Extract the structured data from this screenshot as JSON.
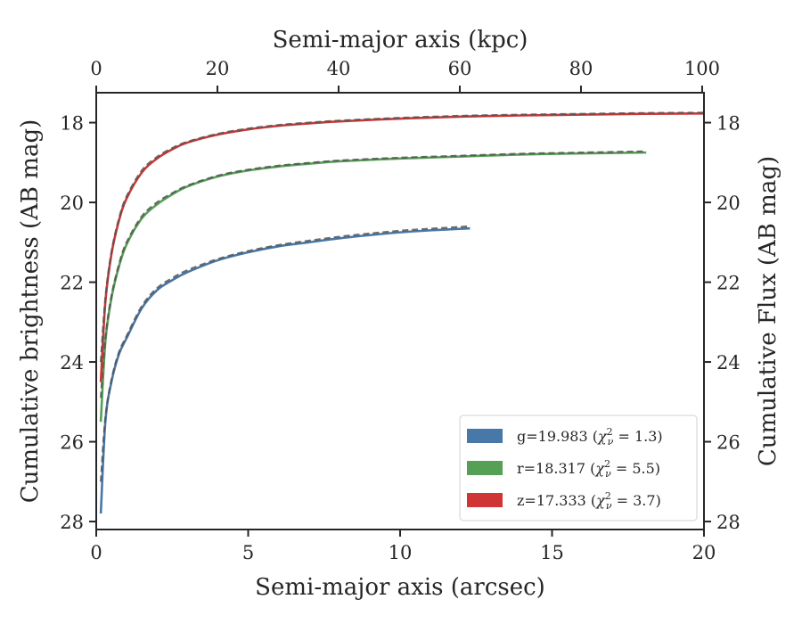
{
  "chart_data": {
    "type": "line",
    "xlabel": "Semi-major axis (arcsec)",
    "ylabel": "Cumulative brightness (AB mag)",
    "top_xlabel": "Semi-major axis (kpc)",
    "right_ylabel": "Cumulative Flux (AB mag)",
    "xlim": [
      0,
      20
    ],
    "ylim": [
      28.2,
      17.25
    ],
    "y_inverted": true,
    "top_xlim": [
      0,
      100.3
    ],
    "x_ticks": [
      "0",
      "5",
      "10",
      "15",
      "20"
    ],
    "x_tick_values": [
      0,
      5,
      10,
      15,
      20
    ],
    "top_x_ticks": [
      "0",
      "20",
      "40",
      "60",
      "80",
      "100"
    ],
    "top_x_tick_values": [
      0,
      20,
      40,
      60,
      80,
      100
    ],
    "y_ticks": [
      "18",
      "20",
      "22",
      "24",
      "26",
      "28"
    ],
    "y_tick_values": [
      18,
      20,
      22,
      24,
      26,
      28
    ],
    "grid": false,
    "legend_position": "bottom-right",
    "colors": {
      "g": "#4878a8",
      "r": "#55a055",
      "z": "#d03535",
      "model": "#555555"
    },
    "series": [
      {
        "name": "g=19.983 ($\\chi^2_\\nu = 1.3$)",
        "label_text": "g=19.983 (",
        "chi_value": "1.3",
        "color": "#4878a8",
        "x": [
          0.15,
          0.3,
          0.5,
          0.75,
          1.0,
          1.5,
          2.0,
          2.5,
          3.0,
          4.0,
          5.0,
          6.0,
          7.0,
          8.0,
          9.0,
          10.0,
          11.0,
          12.3
        ],
        "y": [
          27.8,
          25.5,
          24.5,
          23.8,
          23.4,
          22.65,
          22.2,
          21.95,
          21.75,
          21.45,
          21.25,
          21.1,
          21.0,
          20.9,
          20.82,
          20.75,
          20.7,
          20.65
        ],
        "model_y": [
          27.0,
          25.4,
          24.45,
          23.75,
          23.35,
          22.6,
          22.15,
          21.9,
          21.7,
          21.42,
          21.22,
          21.07,
          20.96,
          20.86,
          20.78,
          20.71,
          20.66,
          20.6
        ]
      },
      {
        "name": "r=18.317 ($\\chi^2_\\nu = 5.5$)",
        "label_text": "r=18.317 (",
        "chi_value": "5.5",
        "color": "#55a055",
        "x": [
          0.15,
          0.3,
          0.5,
          0.75,
          1.0,
          1.5,
          2.0,
          2.5,
          3.0,
          4.0,
          5.0,
          6.0,
          7.0,
          8.0,
          10.0,
          12.0,
          14.0,
          16.0,
          18.1
        ],
        "y": [
          25.5,
          23.5,
          22.4,
          21.6,
          21.05,
          20.4,
          20.05,
          19.8,
          19.6,
          19.35,
          19.2,
          19.1,
          19.03,
          18.97,
          18.9,
          18.85,
          18.8,
          18.77,
          18.75
        ],
        "model_y": [
          24.9,
          23.4,
          22.35,
          21.55,
          21.0,
          20.35,
          20.0,
          19.77,
          19.58,
          19.33,
          19.18,
          19.08,
          19.01,
          18.95,
          18.88,
          18.83,
          18.78,
          18.75,
          18.72
        ]
      },
      {
        "name": "z=17.333 ($\\chi^2_\\nu = 3.7$)",
        "label_text": "z=17.333 (",
        "chi_value": "3.7",
        "color": "#d03535",
        "x": [
          0.15,
          0.3,
          0.5,
          0.75,
          1.0,
          1.5,
          2.0,
          2.5,
          3.0,
          4.0,
          5.0,
          6.0,
          7.0,
          8.0,
          10.0,
          12.0,
          14.0,
          16.0,
          18.0,
          20.0
        ],
        "y": [
          24.5,
          22.5,
          21.3,
          20.45,
          19.9,
          19.25,
          18.9,
          18.67,
          18.5,
          18.3,
          18.17,
          18.08,
          18.02,
          17.97,
          17.9,
          17.85,
          17.82,
          17.8,
          17.78,
          17.77
        ],
        "model_y": [
          24.0,
          22.4,
          21.25,
          20.4,
          19.85,
          19.2,
          18.86,
          18.64,
          18.48,
          18.28,
          18.15,
          18.06,
          18.0,
          17.95,
          17.88,
          17.83,
          17.8,
          17.78,
          17.76,
          17.75
        ]
      }
    ]
  }
}
